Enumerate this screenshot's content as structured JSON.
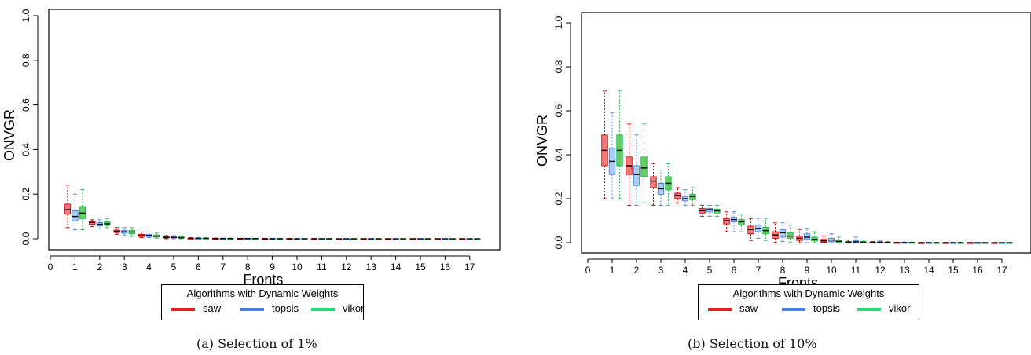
{
  "chart_data": [
    {
      "id": "a",
      "type": "box",
      "caption": "(a) Selection of 1%",
      "xlabel": "Fronts",
      "ylabel": "ONVGR",
      "xticks": [
        "0",
        "1",
        "2",
        "3",
        "4",
        "5",
        "6",
        "7",
        "8",
        "9",
        "10",
        "11",
        "12",
        "13",
        "14",
        "15",
        "16",
        "17"
      ],
      "yticks": [
        "0.0",
        "0.2",
        "0.4",
        "0.6",
        "0.8",
        "1.0"
      ],
      "ylim": [
        0,
        1
      ],
      "legend": {
        "title": "Algorithms with Dynamic Weights",
        "position": "bottom-center",
        "items": [
          {
            "label": "saw",
            "color": "#e41a1c"
          },
          {
            "label": "topsis",
            "color": "#4a7fe0"
          },
          {
            "label": "vikor",
            "color": "#22dd77"
          }
        ]
      },
      "series": [
        {
          "name": "saw",
          "boxes": [
            [
              1,
              0.05,
              0.11,
              0.13,
              0.155,
              0.24
            ],
            [
              2,
              0.055,
              0.065,
              0.073,
              0.078,
              0.085
            ],
            [
              3,
              0.02,
              0.028,
              0.033,
              0.038,
              0.05
            ],
            [
              4,
              0.005,
              0.01,
              0.015,
              0.02,
              0.03
            ],
            [
              5,
              0,
              0.004,
              0.006,
              0.009,
              0.014
            ],
            [
              6,
              0,
              0.001,
              0.002,
              0.003,
              0.005
            ],
            [
              7,
              0,
              0,
              0.001,
              0.002,
              0.003
            ],
            [
              8,
              0,
              0,
              0.001,
              0.001,
              0.002
            ],
            [
              9,
              0,
              0,
              0,
              0.001,
              0.002
            ],
            [
              10,
              0,
              0,
              0,
              0.001,
              0.001
            ],
            [
              11,
              0,
              0,
              0,
              0,
              0.001
            ],
            [
              12,
              0,
              0,
              0,
              0,
              0
            ],
            [
              13,
              0,
              0,
              0,
              0,
              0
            ],
            [
              14,
              0,
              0,
              0,
              0,
              0
            ],
            [
              15,
              0,
              0,
              0,
              0,
              0
            ],
            [
              16,
              0,
              0,
              0,
              0,
              0
            ],
            [
              17,
              0,
              0,
              0,
              0,
              0
            ]
          ]
        },
        {
          "name": "topsis",
          "boxes": [
            [
              1,
              0.04,
              0.08,
              0.1,
              0.125,
              0.2
            ],
            [
              2,
              0.045,
              0.058,
              0.065,
              0.072,
              0.085
            ],
            [
              3,
              0.015,
              0.025,
              0.031,
              0.037,
              0.05
            ],
            [
              4,
              0.005,
              0.01,
              0.015,
              0.02,
              0.03
            ],
            [
              5,
              0,
              0.004,
              0.006,
              0.009,
              0.014
            ],
            [
              6,
              0,
              0.001,
              0.002,
              0.003,
              0.005
            ],
            [
              7,
              0,
              0,
              0.001,
              0.002,
              0.003
            ],
            [
              8,
              0,
              0,
              0.001,
              0.001,
              0.002
            ],
            [
              9,
              0,
              0,
              0,
              0.001,
              0.002
            ],
            [
              10,
              0,
              0,
              0,
              0.001,
              0.001
            ],
            [
              11,
              0,
              0,
              0,
              0,
              0.001
            ],
            [
              12,
              0,
              0,
              0,
              0,
              0
            ],
            [
              13,
              0,
              0,
              0,
              0,
              0
            ],
            [
              14,
              0,
              0,
              0,
              0,
              0
            ],
            [
              15,
              0,
              0,
              0,
              0,
              0
            ],
            [
              16,
              0,
              0,
              0,
              0,
              0
            ],
            [
              17,
              0,
              0,
              0,
              0,
              0
            ]
          ]
        },
        {
          "name": "vikor",
          "boxes": [
            [
              1,
              0.04,
              0.09,
              0.115,
              0.145,
              0.22
            ],
            [
              2,
              0.05,
              0.06,
              0.067,
              0.075,
              0.09
            ],
            [
              3,
              0.01,
              0.022,
              0.03,
              0.038,
              0.05
            ],
            [
              4,
              0.003,
              0.008,
              0.012,
              0.017,
              0.025
            ],
            [
              5,
              0,
              0.003,
              0.005,
              0.008,
              0.013
            ],
            [
              6,
              0,
              0.001,
              0.002,
              0.003,
              0.005
            ],
            [
              7,
              0,
              0,
              0.001,
              0.002,
              0.003
            ],
            [
              8,
              0,
              0,
              0.001,
              0.001,
              0.002
            ],
            [
              9,
              0,
              0,
              0,
              0.001,
              0.002
            ],
            [
              10,
              0,
              0,
              0,
              0.001,
              0.001
            ],
            [
              11,
              0,
              0,
              0,
              0,
              0.001
            ],
            [
              12,
              0,
              0,
              0,
              0,
              0
            ],
            [
              13,
              0,
              0,
              0,
              0,
              0
            ],
            [
              14,
              0,
              0,
              0,
              0,
              0
            ],
            [
              15,
              0,
              0,
              0,
              0,
              0
            ],
            [
              16,
              0,
              0,
              0,
              0,
              0
            ],
            [
              17,
              0,
              0,
              0,
              0,
              0
            ]
          ]
        }
      ]
    },
    {
      "id": "b",
      "type": "box",
      "caption": "(b) Selection of 10%",
      "xlabel": "Fronts",
      "ylabel": "ONVGR",
      "xticks": [
        "0",
        "1",
        "2",
        "3",
        "4",
        "5",
        "6",
        "7",
        "8",
        "9",
        "10",
        "11",
        "12",
        "13",
        "14",
        "15",
        "16",
        "17"
      ],
      "yticks": [
        "0.0",
        "0.2",
        "0.4",
        "0.6",
        "0.8",
        "1.0"
      ],
      "ylim": [
        0,
        1
      ],
      "legend": {
        "title": "Algorithms with Dynamic Weights",
        "position": "bottom-center",
        "items": [
          {
            "label": "saw",
            "color": "#e41a1c"
          },
          {
            "label": "topsis",
            "color": "#4a7fe0"
          },
          {
            "label": "vikor",
            "color": "#22dd77"
          }
        ]
      },
      "series": [
        {
          "name": "saw",
          "boxes": [
            [
              1,
              0.2,
              0.35,
              0.42,
              0.49,
              0.69
            ],
            [
              2,
              0.17,
              0.31,
              0.35,
              0.39,
              0.54
            ],
            [
              3,
              0.17,
              0.25,
              0.28,
              0.3,
              0.36
            ],
            [
              4,
              0.18,
              0.2,
              0.215,
              0.225,
              0.25
            ],
            [
              5,
              0.12,
              0.135,
              0.145,
              0.155,
              0.17
            ],
            [
              6,
              0.05,
              0.085,
              0.1,
              0.11,
              0.14
            ],
            [
              7,
              0.01,
              0.04,
              0.06,
              0.075,
              0.11
            ],
            [
              8,
              0,
              0.02,
              0.035,
              0.05,
              0.09
            ],
            [
              9,
              0,
              0.01,
              0.02,
              0.03,
              0.06
            ],
            [
              10,
              0,
              0.002,
              0.008,
              0.015,
              0.03
            ],
            [
              11,
              0,
              0,
              0.002,
              0.005,
              0.012
            ],
            [
              12,
              0,
              0,
              0.001,
              0.002,
              0.005
            ],
            [
              13,
              0,
              0,
              0,
              0.001,
              0.002
            ],
            [
              14,
              0,
              0,
              0,
              0,
              0.001
            ],
            [
              15,
              0,
              0,
              0,
              0,
              0.001
            ],
            [
              16,
              0,
              0,
              0,
              0,
              0
            ],
            [
              17,
              0,
              0,
              0,
              0,
              0
            ]
          ]
        },
        {
          "name": "topsis",
          "boxes": [
            [
              1,
              0.2,
              0.31,
              0.37,
              0.43,
              0.59
            ],
            [
              2,
              0.17,
              0.26,
              0.31,
              0.35,
              0.49
            ],
            [
              3,
              0.17,
              0.22,
              0.245,
              0.27,
              0.33
            ],
            [
              4,
              0.17,
              0.19,
              0.2,
              0.21,
              0.24
            ],
            [
              5,
              0.12,
              0.14,
              0.15,
              0.155,
              0.17
            ],
            [
              6,
              0.05,
              0.095,
              0.105,
              0.115,
              0.14
            ],
            [
              7,
              0.02,
              0.05,
              0.065,
              0.08,
              0.11
            ],
            [
              8,
              0.005,
              0.025,
              0.045,
              0.06,
              0.09
            ],
            [
              9,
              0,
              0.015,
              0.025,
              0.04,
              0.065
            ],
            [
              10,
              0,
              0.005,
              0.012,
              0.02,
              0.04
            ],
            [
              11,
              0,
              0.001,
              0.004,
              0.01,
              0.025
            ],
            [
              12,
              0,
              0,
              0.002,
              0.004,
              0.008
            ],
            [
              13,
              0,
              0,
              0,
              0.001,
              0.003
            ],
            [
              14,
              0,
              0,
              0,
              0,
              0.001
            ],
            [
              15,
              0,
              0,
              0,
              0,
              0.001
            ],
            [
              16,
              0,
              0,
              0,
              0,
              0
            ],
            [
              17,
              0,
              0,
              0,
              0,
              0
            ]
          ]
        },
        {
          "name": "vikor",
          "boxes": [
            [
              1,
              0.2,
              0.35,
              0.42,
              0.49,
              0.69
            ],
            [
              2,
              0.18,
              0.3,
              0.34,
              0.39,
              0.54
            ],
            [
              3,
              0.17,
              0.24,
              0.27,
              0.3,
              0.36
            ],
            [
              4,
              0.17,
              0.195,
              0.21,
              0.22,
              0.25
            ],
            [
              5,
              0.12,
              0.135,
              0.145,
              0.152,
              0.17
            ],
            [
              6,
              0.05,
              0.08,
              0.095,
              0.105,
              0.13
            ],
            [
              7,
              0.01,
              0.04,
              0.055,
              0.07,
              0.11
            ],
            [
              8,
              0,
              0.02,
              0.03,
              0.045,
              0.08
            ],
            [
              9,
              0,
              0.008,
              0.015,
              0.025,
              0.05
            ],
            [
              10,
              0,
              0.002,
              0.006,
              0.012,
              0.025
            ],
            [
              11,
              0,
              0,
              0.002,
              0.005,
              0.012
            ],
            [
              12,
              0,
              0,
              0.001,
              0.002,
              0.005
            ],
            [
              13,
              0,
              0,
              0,
              0.001,
              0.002
            ],
            [
              14,
              0,
              0,
              0,
              0,
              0.001
            ],
            [
              15,
              0,
              0,
              0,
              0,
              0.001
            ],
            [
              16,
              0,
              0,
              0,
              0,
              0
            ],
            [
              17,
              0,
              0,
              0,
              0,
              0
            ]
          ]
        }
      ]
    }
  ]
}
